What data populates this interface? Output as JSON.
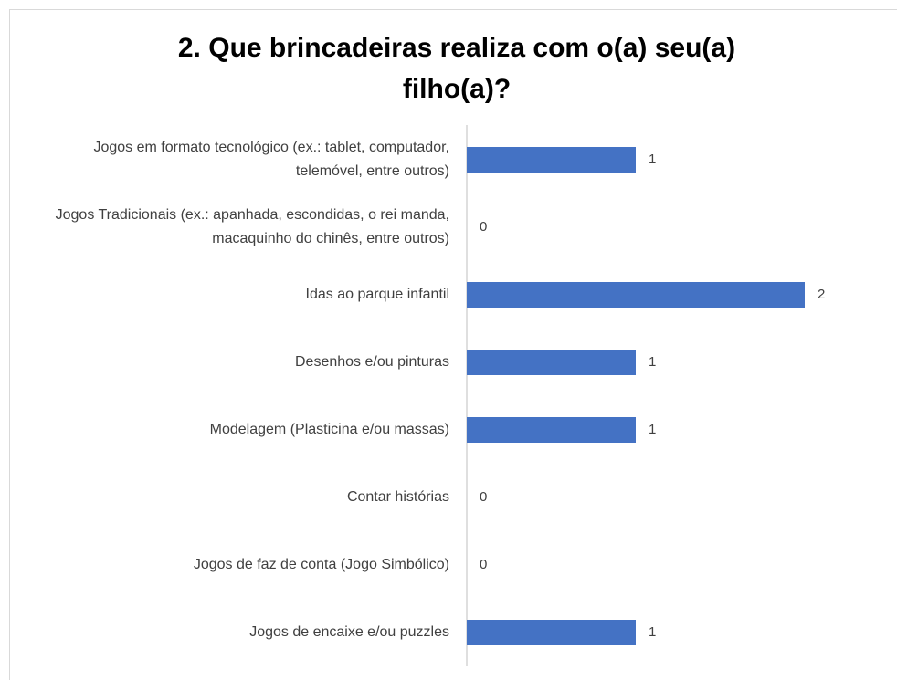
{
  "chart_data": {
    "type": "barh",
    "title": "2. Que brincadeiras realiza com o(a) seu(a) filho(a)?",
    "categories": [
      "Jogos em formato tecnológico (ex.: tablet, computador, telemóvel, entre outros)",
      "Jogos Tradicionais (ex.: apanhada, escondidas, o rei manda, macaquinho do chinês, entre outros)",
      "Idas ao parque infantil",
      "Desenhos e/ou pinturas",
      "Modelagem (Plasticina e/ou massas)",
      "Contar histórias",
      "Jogos de faz de conta (Jogo Simbólico)",
      "Jogos de encaixe e/ou puzzles"
    ],
    "values": [
      1,
      0,
      2,
      1,
      1,
      0,
      0,
      1
    ],
    "color": "#4472c4",
    "xlim": [
      0,
      2
    ]
  }
}
